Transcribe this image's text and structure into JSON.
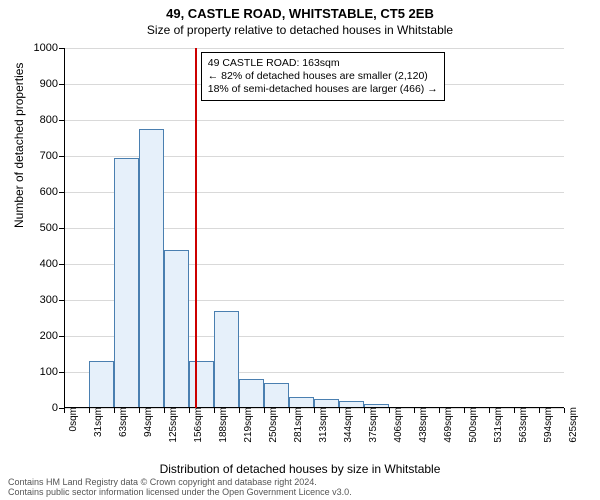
{
  "title_line1": "49, CASTLE ROAD, WHITSTABLE, CT5 2EB",
  "title_line2": "Size of property relative to detached houses in Whitstable",
  "ylabel": "Number of detached properties",
  "xlabel": "Distribution of detached houses by size in Whitstable",
  "chart": {
    "type": "histogram",
    "ylim": [
      0,
      1000
    ],
    "yticks": [
      0,
      100,
      200,
      300,
      400,
      500,
      600,
      700,
      800,
      900,
      1000
    ],
    "xticks_labels": [
      "0sqm",
      "31sqm",
      "63sqm",
      "94sqm",
      "125sqm",
      "156sqm",
      "188sqm",
      "219sqm",
      "250sqm",
      "281sqm",
      "313sqm",
      "344sqm",
      "375sqm",
      "406sqm",
      "438sqm",
      "469sqm",
      "500sqm",
      "531sqm",
      "563sqm",
      "594sqm",
      "625sqm"
    ],
    "bins": 20,
    "values": [
      0,
      130,
      695,
      775,
      440,
      130,
      270,
      80,
      70,
      30,
      25,
      20,
      10,
      0,
      0,
      0,
      0,
      0,
      0,
      0
    ],
    "bar_fill": "#e6f0fa",
    "bar_border": "#4a7fb0",
    "grid_color": "#d9d9d9",
    "background": "#ffffff",
    "marker_bin_index": 5,
    "marker_fraction_in_bin": 0.23,
    "marker_color": "#cc0000"
  },
  "annotation": {
    "line1": "49 CASTLE ROAD: 163sqm",
    "line2": "← 82% of detached houses are smaller (2,120)",
    "line3": "18% of semi-detached houses are larger (466) →"
  },
  "footer_line1": "Contains HM Land Registry data © Crown copyright and database right 2024.",
  "footer_line2": "Contains public sector information licensed under the Open Government Licence v3.0."
}
